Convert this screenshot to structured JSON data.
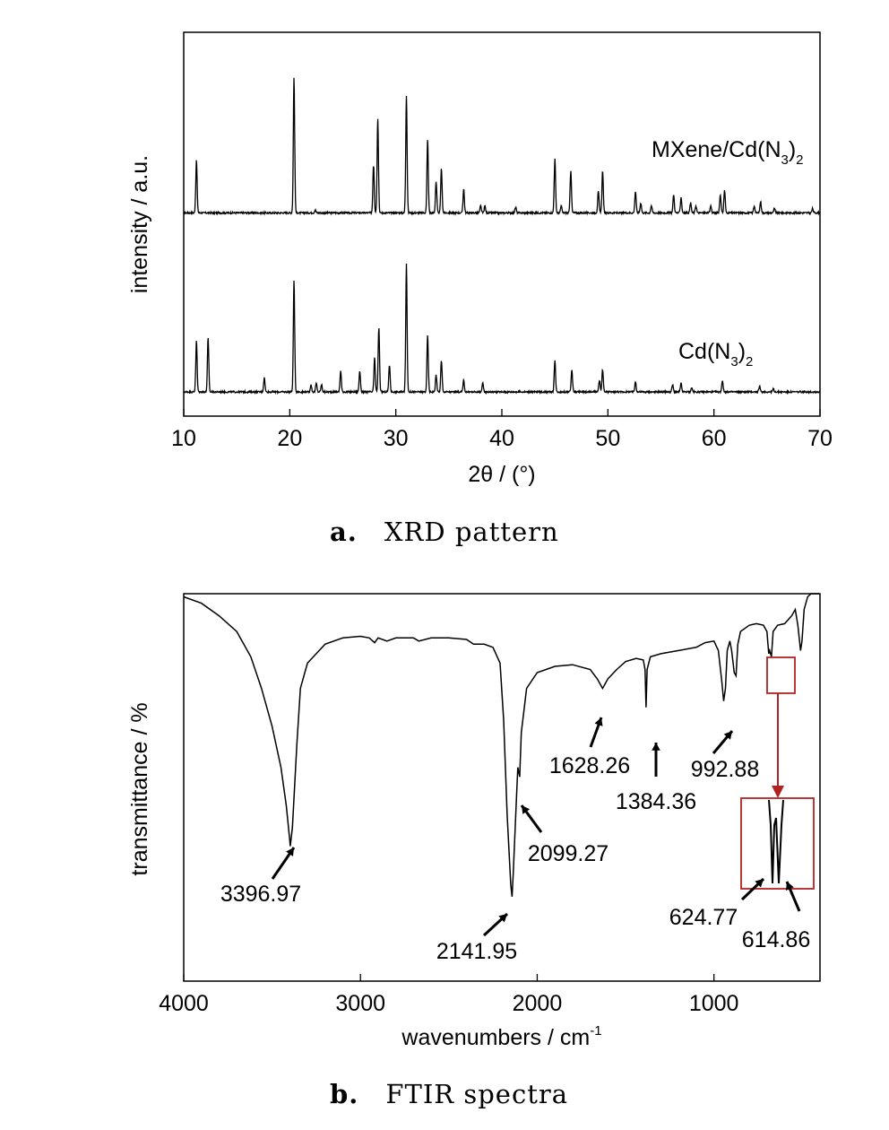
{
  "chart_data": [
    {
      "type": "line",
      "caption_letter": "a.",
      "caption_text": "XRD pattern",
      "xlabel": "2θ / (°)",
      "ylabel": "intensity / a.u.",
      "xlim": [
        10,
        70
      ],
      "xticks": [
        10,
        20,
        30,
        40,
        50,
        60,
        70
      ],
      "yticks_shown": false,
      "series": [
        {
          "name": "MXene/Cd(N3)2",
          "label_main": "MXene/Cd(N",
          "label_sub": "3",
          "label_tail": ")",
          "label_sub2": "2",
          "offset": 0.55,
          "peaks": [
            [
              11.2,
              0.37
            ],
            [
              20.4,
              0.96
            ],
            [
              22.4,
              0.02
            ],
            [
              27.9,
              0.34
            ],
            [
              28.3,
              0.67
            ],
            [
              31.0,
              0.83
            ],
            [
              33.0,
              0.52
            ],
            [
              33.8,
              0.22
            ],
            [
              34.3,
              0.31
            ],
            [
              36.4,
              0.17
            ],
            [
              38.0,
              0.05
            ],
            [
              38.4,
              0.05
            ],
            [
              41.3,
              0.04
            ],
            [
              45.0,
              0.38
            ],
            [
              45.6,
              0.05
            ],
            [
              46.5,
              0.3
            ],
            [
              49.1,
              0.15
            ],
            [
              49.5,
              0.3
            ],
            [
              52.6,
              0.15
            ],
            [
              53.1,
              0.07
            ],
            [
              54.1,
              0.05
            ],
            [
              56.2,
              0.13
            ],
            [
              56.9,
              0.11
            ],
            [
              57.8,
              0.07
            ],
            [
              58.3,
              0.05
            ],
            [
              59.7,
              0.05
            ],
            [
              60.6,
              0.13
            ],
            [
              61.0,
              0.16
            ],
            [
              63.8,
              0.05
            ],
            [
              64.4,
              0.08
            ],
            [
              65.7,
              0.03
            ],
            [
              69.3,
              0.03
            ]
          ]
        },
        {
          "name": "Cd(N3)2",
          "label_main": "Cd(N",
          "label_sub": "3",
          "label_tail": ")",
          "label_sub2": "2",
          "offset": 0.0,
          "peaks": [
            [
              11.2,
              0.36
            ],
            [
              12.3,
              0.38
            ],
            [
              17.6,
              0.1
            ],
            [
              20.4,
              0.79
            ],
            [
              22.0,
              0.05
            ],
            [
              22.5,
              0.06
            ],
            [
              23.0,
              0.05
            ],
            [
              24.8,
              0.15
            ],
            [
              26.6,
              0.15
            ],
            [
              28.0,
              0.24
            ],
            [
              28.4,
              0.45
            ],
            [
              29.4,
              0.19
            ],
            [
              31.0,
              0.9
            ],
            [
              33.0,
              0.4
            ],
            [
              33.8,
              0.12
            ],
            [
              34.3,
              0.22
            ],
            [
              36.4,
              0.08
            ],
            [
              38.2,
              0.06
            ],
            [
              45.0,
              0.22
            ],
            [
              46.6,
              0.16
            ],
            [
              49.2,
              0.08
            ],
            [
              49.5,
              0.16
            ],
            [
              52.6,
              0.07
            ],
            [
              56.1,
              0.05
            ],
            [
              56.9,
              0.06
            ],
            [
              57.9,
              0.03
            ],
            [
              60.8,
              0.08
            ],
            [
              64.3,
              0.04
            ],
            [
              65.6,
              0.02
            ]
          ]
        }
      ]
    },
    {
      "type": "line",
      "caption_letter": "b.",
      "caption_text": "FTIR spectra",
      "xlabel": "wavenumbers / cm",
      "xlabel_sup": "-1",
      "ylabel": "transmittance / %",
      "xlim": [
        4000,
        400
      ],
      "xticks": [
        4000,
        3000,
        2000,
        1000
      ],
      "series": [
        {
          "name": "FTIR",
          "points": [
            [
              4000,
              0.99
            ],
            [
              3900,
              0.97
            ],
            [
              3800,
              0.93
            ],
            [
              3700,
              0.88
            ],
            [
              3620,
              0.8
            ],
            [
              3560,
              0.7
            ],
            [
              3500,
              0.58
            ],
            [
              3450,
              0.45
            ],
            [
              3420,
              0.33
            ],
            [
              3400,
              0.22
            ],
            [
              3397,
              0.2
            ],
            [
              3385,
              0.26
            ],
            [
              3360,
              0.52
            ],
            [
              3340,
              0.7
            ],
            [
              3300,
              0.78
            ],
            [
              3200,
              0.84
            ],
            [
              3100,
              0.86
            ],
            [
              3000,
              0.865
            ],
            [
              2950,
              0.86
            ],
            [
              2920,
              0.845
            ],
            [
              2900,
              0.86
            ],
            [
              2850,
              0.85
            ],
            [
              2800,
              0.86
            ],
            [
              2700,
              0.86
            ],
            [
              2670,
              0.85
            ],
            [
              2600,
              0.86
            ],
            [
              2500,
              0.86
            ],
            [
              2400,
              0.855
            ],
            [
              2360,
              0.84
            ],
            [
              2300,
              0.84
            ],
            [
              2250,
              0.83
            ],
            [
              2210,
              0.78
            ],
            [
              2190,
              0.6
            ],
            [
              2170,
              0.3
            ],
            [
              2150,
              0.08
            ],
            [
              2142,
              0.04
            ],
            [
              2135,
              0.12
            ],
            [
              2120,
              0.32
            ],
            [
              2110,
              0.45
            ],
            [
              2099,
              0.42
            ],
            [
              2090,
              0.56
            ],
            [
              2060,
              0.7
            ],
            [
              2000,
              0.75
            ],
            [
              1900,
              0.77
            ],
            [
              1800,
              0.775
            ],
            [
              1700,
              0.76
            ],
            [
              1660,
              0.73
            ],
            [
              1630,
              0.7
            ],
            [
              1600,
              0.73
            ],
            [
              1550,
              0.76
            ],
            [
              1500,
              0.785
            ],
            [
              1440,
              0.795
            ],
            [
              1400,
              0.79
            ],
            [
              1390,
              0.76
            ],
            [
              1384,
              0.64
            ],
            [
              1378,
              0.76
            ],
            [
              1360,
              0.8
            ],
            [
              1300,
              0.81
            ],
            [
              1200,
              0.82
            ],
            [
              1100,
              0.83
            ],
            [
              1050,
              0.845
            ],
            [
              1000,
              0.85
            ],
            [
              975,
              0.82
            ],
            [
              955,
              0.72
            ],
            [
              945,
              0.66
            ],
            [
              935,
              0.7
            ],
            [
              925,
              0.82
            ],
            [
              910,
              0.85
            ],
            [
              900,
              0.82
            ],
            [
              885,
              0.75
            ],
            [
              875,
              0.74
            ],
            [
              865,
              0.84
            ],
            [
              850,
              0.88
            ],
            [
              800,
              0.9
            ],
            [
              760,
              0.905
            ],
            [
              720,
              0.9
            ],
            [
              700,
              0.88
            ],
            [
              690,
              0.81
            ],
            [
              685,
              0.82
            ],
            [
              675,
              0.8
            ],
            [
              665,
              0.88
            ],
            [
              640,
              0.9
            ],
            [
              600,
              0.905
            ],
            [
              560,
              0.93
            ],
            [
              540,
              0.95
            ],
            [
              525,
              0.9
            ],
            [
              510,
              0.82
            ],
            [
              502,
              0.85
            ],
            [
              490,
              0.95
            ],
            [
              470,
              0.99
            ],
            [
              450,
              1.0
            ],
            [
              420,
              1.0
            ],
            [
              405,
              1.0
            ]
          ]
        }
      ],
      "annotations": [
        {
          "text": "3396.97",
          "x": 3396.97
        },
        {
          "text": "2141.95",
          "x": 2141.95
        },
        {
          "text": "2099.27",
          "x": 2099.27
        },
        {
          "text": "1628.26",
          "x": 1628.26
        },
        {
          "text": "1384.36",
          "x": 1384.36
        },
        {
          "text": "992.88",
          "x": 992.88
        },
        {
          "text": "624.77",
          "x": 624.77
        },
        {
          "text": "614.86",
          "x": 614.86
        }
      ],
      "highlight_color": "#b22222"
    }
  ]
}
